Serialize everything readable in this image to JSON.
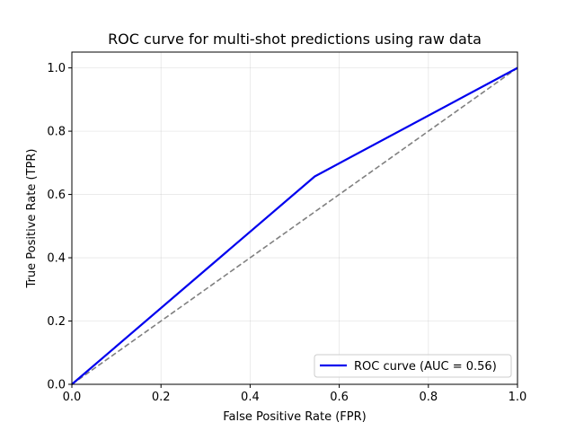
{
  "chart_data": {
    "type": "line",
    "title": "ROC curve for multi-shot predictions using raw data",
    "xlabel": "False Positive Rate (FPR)",
    "ylabel": "True Positive Rate (TPR)",
    "xlim": [
      0.0,
      1.0
    ],
    "ylim": [
      0.0,
      1.05
    ],
    "x_ticks": [
      0.0,
      0.2,
      0.4,
      0.6,
      0.8,
      1.0
    ],
    "x_tick_labels": [
      "0.0",
      "0.2",
      "0.4",
      "0.6",
      "0.8",
      "1.0"
    ],
    "y_ticks": [
      0.0,
      0.2,
      0.4,
      0.6,
      0.8,
      1.0
    ],
    "y_tick_labels": [
      "0.0",
      "0.2",
      "0.4",
      "0.6",
      "0.8",
      "1.0"
    ],
    "grid": true,
    "legend_position": "lower-right",
    "series": [
      {
        "name": "ROC curve (AUC = 0.56)",
        "color": "#0000ee",
        "style": "solid",
        "x": [
          0.0,
          0.545,
          1.0
        ],
        "y": [
          0.0,
          0.657,
          1.0
        ]
      },
      {
        "color": "#808080",
        "style": "dashed",
        "x": [
          0.0,
          1.0
        ],
        "y": [
          0.0,
          1.0
        ]
      }
    ]
  }
}
